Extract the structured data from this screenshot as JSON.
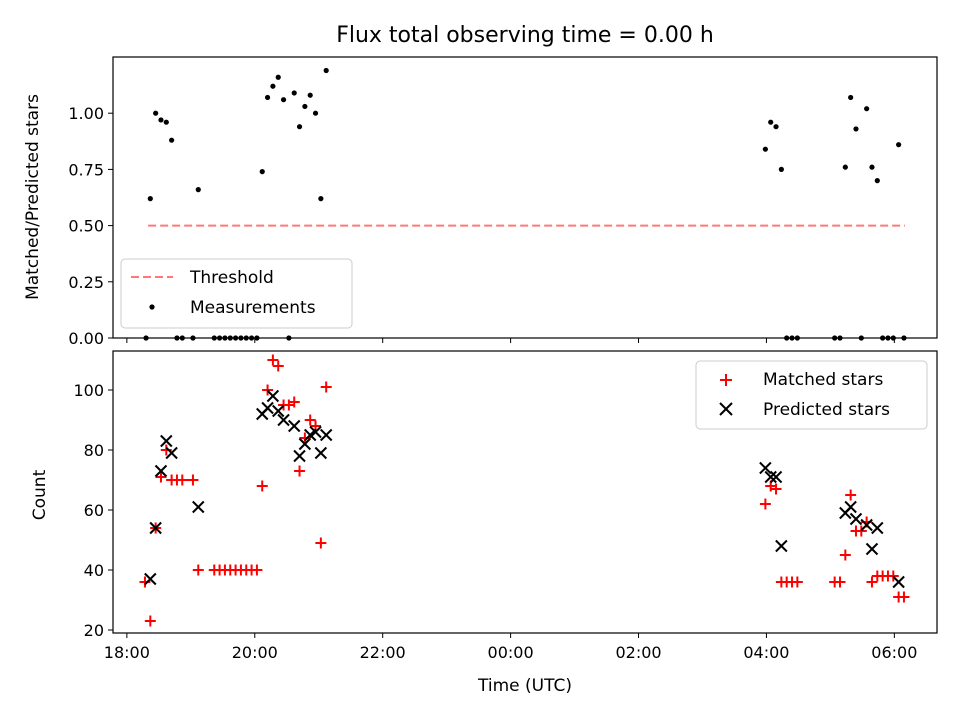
{
  "chart_data": [
    {
      "type": "scatter",
      "title": "Flux total observing time = 0.00 h",
      "xlabel": "",
      "ylabel": "Matched/Predicted stars",
      "xlim": [
        "17:47",
        "06:40"
      ],
      "ylim": [
        0,
        1.25
      ],
      "yticks": [
        "0.00",
        "0.25",
        "0.50",
        "0.75",
        "1.00"
      ],
      "legend": {
        "position": "lower-left",
        "entries": [
          "Threshold",
          "Measurements"
        ]
      },
      "colors": {
        "threshold": "#ff7777",
        "measurements": "#000000"
      },
      "series": [
        {
          "name": "Threshold",
          "kind": "dashed-line",
          "points": [
            {
              "x": "18:20",
              "y": 0.5
            },
            {
              "x": "06:10",
              "y": 0.5
            }
          ]
        },
        {
          "name": "Measurements",
          "kind": "dots",
          "points": [
            {
              "x": "18:18",
              "y": 0.0
            },
            {
              "x": "18:22",
              "y": 0.62
            },
            {
              "x": "18:27",
              "y": 1.0
            },
            {
              "x": "18:32",
              "y": 0.97
            },
            {
              "x": "18:37",
              "y": 0.96
            },
            {
              "x": "18:42",
              "y": 0.88
            },
            {
              "x": "18:47",
              "y": 0.0
            },
            {
              "x": "18:52",
              "y": 0.0
            },
            {
              "x": "19:02",
              "y": 0.0
            },
            {
              "x": "19:07",
              "y": 0.66
            },
            {
              "x": "19:22",
              "y": 0.0
            },
            {
              "x": "19:27",
              "y": 0.0
            },
            {
              "x": "19:32",
              "y": 0.0
            },
            {
              "x": "19:37",
              "y": 0.0
            },
            {
              "x": "19:42",
              "y": 0.0
            },
            {
              "x": "19:47",
              "y": 0.0
            },
            {
              "x": "19:52",
              "y": 0.0
            },
            {
              "x": "19:57",
              "y": 0.0
            },
            {
              "x": "20:02",
              "y": 0.0
            },
            {
              "x": "20:07",
              "y": 0.74
            },
            {
              "x": "20:12",
              "y": 1.07
            },
            {
              "x": "20:17",
              "y": 1.12
            },
            {
              "x": "20:22",
              "y": 1.16
            },
            {
              "x": "20:27",
              "y": 1.06
            },
            {
              "x": "20:32",
              "y": 0.0
            },
            {
              "x": "20:37",
              "y": 1.09
            },
            {
              "x": "20:42",
              "y": 0.94
            },
            {
              "x": "20:47",
              "y": 1.03
            },
            {
              "x": "20:52",
              "y": 1.08
            },
            {
              "x": "20:57",
              "y": 1.0
            },
            {
              "x": "21:02",
              "y": 0.62
            },
            {
              "x": "21:07",
              "y": 1.19
            },
            {
              "x": "03:59",
              "y": 0.84
            },
            {
              "x": "04:04",
              "y": 0.96
            },
            {
              "x": "04:09",
              "y": 0.94
            },
            {
              "x": "04:14",
              "y": 0.75
            },
            {
              "x": "04:19",
              "y": 0.0
            },
            {
              "x": "04:24",
              "y": 0.0
            },
            {
              "x": "04:29",
              "y": 0.0
            },
            {
              "x": "05:04",
              "y": 0.0
            },
            {
              "x": "05:09",
              "y": 0.0
            },
            {
              "x": "05:14",
              "y": 0.76
            },
            {
              "x": "05:19",
              "y": 1.07
            },
            {
              "x": "05:24",
              "y": 0.93
            },
            {
              "x": "05:29",
              "y": 0.0
            },
            {
              "x": "05:34",
              "y": 1.02
            },
            {
              "x": "05:39",
              "y": 0.76
            },
            {
              "x": "05:44",
              "y": 0.7
            },
            {
              "x": "05:49",
              "y": 0.0
            },
            {
              "x": "05:54",
              "y": 0.0
            },
            {
              "x": "05:59",
              "y": 0.0
            },
            {
              "x": "06:04",
              "y": 0.86
            },
            {
              "x": "06:09",
              "y": 0.0
            }
          ]
        }
      ]
    },
    {
      "type": "scatter",
      "title": "",
      "xlabel": "Time (UTC)",
      "ylabel": "Count",
      "xlim": [
        "17:47",
        "06:40"
      ],
      "ylim": [
        19,
        113
      ],
      "xticks": [
        "18:00",
        "20:00",
        "22:00",
        "00:00",
        "02:00",
        "04:00",
        "06:00"
      ],
      "yticks": [
        "20",
        "40",
        "60",
        "80",
        "100"
      ],
      "legend": {
        "position": "top-right",
        "entries": [
          "Matched stars",
          "Predicted stars"
        ]
      },
      "colors": {
        "matched": "#ff0000",
        "predicted": "#000000"
      },
      "series": [
        {
          "name": "Matched stars",
          "marker": "plus",
          "points": [
            {
              "x": "18:17",
              "y": 36
            },
            {
              "x": "18:22",
              "y": 23
            },
            {
              "x": "18:27",
              "y": 54
            },
            {
              "x": "18:32",
              "y": 71
            },
            {
              "x": "18:37",
              "y": 80
            },
            {
              "x": "18:42",
              "y": 70
            },
            {
              "x": "18:47",
              "y": 70
            },
            {
              "x": "18:52",
              "y": 70
            },
            {
              "x": "19:02",
              "y": 70
            },
            {
              "x": "19:07",
              "y": 40
            },
            {
              "x": "19:22",
              "y": 40
            },
            {
              "x": "19:27",
              "y": 40
            },
            {
              "x": "19:32",
              "y": 40
            },
            {
              "x": "19:37",
              "y": 40
            },
            {
              "x": "19:42",
              "y": 40
            },
            {
              "x": "19:47",
              "y": 40
            },
            {
              "x": "19:52",
              "y": 40
            },
            {
              "x": "19:57",
              "y": 40
            },
            {
              "x": "20:02",
              "y": 40
            },
            {
              "x": "20:07",
              "y": 68
            },
            {
              "x": "20:12",
              "y": 100
            },
            {
              "x": "20:17",
              "y": 110
            },
            {
              "x": "20:22",
              "y": 108
            },
            {
              "x": "20:27",
              "y": 95
            },
            {
              "x": "20:32",
              "y": 95
            },
            {
              "x": "20:37",
              "y": 96
            },
            {
              "x": "20:42",
              "y": 73
            },
            {
              "x": "20:47",
              "y": 84
            },
            {
              "x": "20:52",
              "y": 90
            },
            {
              "x": "20:57",
              "y": 88
            },
            {
              "x": "21:02",
              "y": 49
            },
            {
              "x": "21:07",
              "y": 101
            },
            {
              "x": "03:59",
              "y": 62
            },
            {
              "x": "04:04",
              "y": 68
            },
            {
              "x": "04:09",
              "y": 67
            },
            {
              "x": "04:14",
              "y": 36
            },
            {
              "x": "04:19",
              "y": 36
            },
            {
              "x": "04:24",
              "y": 36
            },
            {
              "x": "04:29",
              "y": 36
            },
            {
              "x": "05:04",
              "y": 36
            },
            {
              "x": "05:09",
              "y": 36
            },
            {
              "x": "05:14",
              "y": 45
            },
            {
              "x": "05:19",
              "y": 65
            },
            {
              "x": "05:24",
              "y": 53
            },
            {
              "x": "05:29",
              "y": 53
            },
            {
              "x": "05:34",
              "y": 56
            },
            {
              "x": "05:39",
              "y": 36
            },
            {
              "x": "05:44",
              "y": 38
            },
            {
              "x": "05:49",
              "y": 38
            },
            {
              "x": "05:54",
              "y": 38
            },
            {
              "x": "05:59",
              "y": 38
            },
            {
              "x": "06:04",
              "y": 31
            },
            {
              "x": "06:09",
              "y": 31
            }
          ]
        },
        {
          "name": "Predicted stars",
          "marker": "x",
          "points": [
            {
              "x": "18:22",
              "y": 37
            },
            {
              "x": "18:27",
              "y": 54
            },
            {
              "x": "18:32",
              "y": 73
            },
            {
              "x": "18:37",
              "y": 83
            },
            {
              "x": "18:42",
              "y": 79
            },
            {
              "x": "19:07",
              "y": 61
            },
            {
              "x": "20:07",
              "y": 92
            },
            {
              "x": "20:12",
              "y": 94
            },
            {
              "x": "20:17",
              "y": 98
            },
            {
              "x": "20:22",
              "y": 93
            },
            {
              "x": "20:27",
              "y": 90
            },
            {
              "x": "20:37",
              "y": 88
            },
            {
              "x": "20:42",
              "y": 78
            },
            {
              "x": "20:47",
              "y": 82
            },
            {
              "x": "20:52",
              "y": 85
            },
            {
              "x": "20:57",
              "y": 86
            },
            {
              "x": "21:02",
              "y": 79
            },
            {
              "x": "21:07",
              "y": 85
            },
            {
              "x": "03:59",
              "y": 74
            },
            {
              "x": "04:04",
              "y": 71
            },
            {
              "x": "04:09",
              "y": 71
            },
            {
              "x": "04:14",
              "y": 48
            },
            {
              "x": "05:14",
              "y": 59
            },
            {
              "x": "05:19",
              "y": 61
            },
            {
              "x": "05:24",
              "y": 57
            },
            {
              "x": "05:34",
              "y": 55
            },
            {
              "x": "05:39",
              "y": 47
            },
            {
              "x": "05:44",
              "y": 54
            },
            {
              "x": "06:04",
              "y": 36
            }
          ]
        }
      ]
    }
  ]
}
